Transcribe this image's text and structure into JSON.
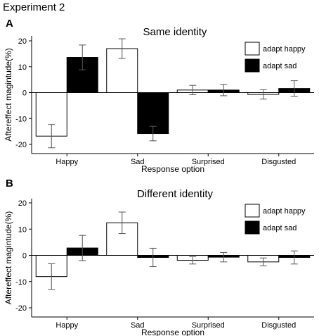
{
  "figure_title": "Experiment 2",
  "chart_data": [
    {
      "panel": "A",
      "type": "bar",
      "title": "Same identity",
      "xlabel": "Response option",
      "ylabel": "Aftereffect magintude(%)",
      "ylim": [
        -22,
        22
      ],
      "yticks": [
        20,
        10,
        0,
        -10,
        -20
      ],
      "categories": [
        "Happy",
        "Sad",
        "Surprised",
        "Disgusted"
      ],
      "legend_position": "top-right",
      "series": [
        {
          "name": "adapt happy",
          "color": "#ffffff",
          "values": [
            -16.8,
            17.0,
            1.0,
            -0.7
          ],
          "errors": [
            4.5,
            3.8,
            1.8,
            1.8
          ]
        },
        {
          "name": "adapt sad",
          "color": "#000000",
          "values": [
            13.6,
            -15.8,
            1.0,
            1.6
          ],
          "errors": [
            4.8,
            2.8,
            2.2,
            3.0
          ]
        }
      ]
    },
    {
      "panel": "B",
      "type": "bar",
      "title": "Different identity",
      "xlabel": "Response option",
      "ylabel": "Aftereffect magintude(%)",
      "ylim": [
        -22,
        22
      ],
      "yticks": [
        20,
        10,
        0,
        -10,
        -20
      ],
      "categories": [
        "Happy",
        "Sad",
        "Surprised",
        "Disgusted"
      ],
      "legend_position": "top-right",
      "series": [
        {
          "name": "adapt happy",
          "color": "#ffffff",
          "values": [
            -8.1,
            12.4,
            -1.9,
            -2.5
          ],
          "errors": [
            4.9,
            4.1,
            1.4,
            1.5
          ]
        },
        {
          "name": "adapt sad",
          "color": "#000000",
          "values": [
            2.8,
            -0.8,
            -0.7,
            -0.8
          ],
          "errors": [
            4.8,
            3.5,
            1.8,
            2.5
          ]
        }
      ]
    }
  ]
}
